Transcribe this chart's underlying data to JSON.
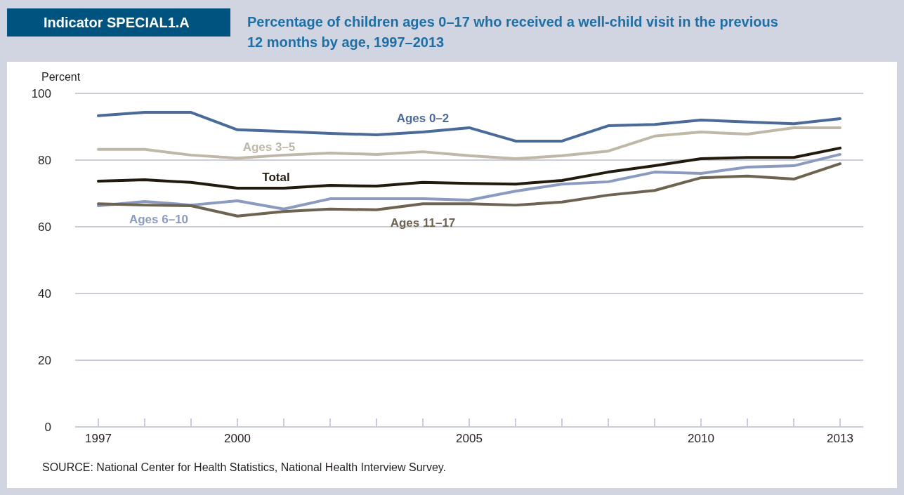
{
  "chart_data": {
    "type": "line",
    "title": "Indicator SPECIAL1.A",
    "subtitle": "Percentage of children ages 0–17 who received a well-child visit in the previous 12 months by age, 1997–2013",
    "ylabel": "Percent",
    "x": [
      1997,
      1998,
      1999,
      2000,
      2001,
      2002,
      2003,
      2004,
      2005,
      2006,
      2007,
      2008,
      2009,
      2010,
      2011,
      2012,
      2013
    ],
    "series": [
      {
        "name": "Ages 0–2",
        "color": "#4a6a9a",
        "values": [
          93.3,
          94.3,
          94.3,
          89.1,
          88.6,
          88.0,
          87.6,
          88.4,
          89.7,
          85.7,
          85.7,
          90.3,
          90.7,
          92.0,
          91.4,
          90.9,
          92.4
        ]
      },
      {
        "name": "Ages 3–5",
        "color": "#bfb8a8",
        "values": [
          83.2,
          83.2,
          81.5,
          80.6,
          81.5,
          82.1,
          81.7,
          82.5,
          81.3,
          80.4,
          81.3,
          82.7,
          87.2,
          88.4,
          87.8,
          89.7,
          89.7
        ]
      },
      {
        "name": "Total",
        "color": "#231a0e",
        "values": [
          73.7,
          74.1,
          73.3,
          71.6,
          71.6,
          72.4,
          72.2,
          73.3,
          73.0,
          72.8,
          73.9,
          76.4,
          78.3,
          80.4,
          80.8,
          80.8,
          83.6
        ]
      },
      {
        "name": "Ages 6–10",
        "color": "#8b9bc0",
        "values": [
          66.3,
          67.6,
          66.5,
          67.8,
          65.3,
          68.4,
          68.4,
          68.4,
          68.0,
          70.7,
          72.8,
          73.5,
          76.4,
          76.0,
          77.9,
          78.3,
          81.7
        ]
      },
      {
        "name": "Ages 11–17",
        "color": "#6d6350",
        "values": [
          66.9,
          66.5,
          66.3,
          63.2,
          64.6,
          65.3,
          65.1,
          66.9,
          66.9,
          66.5,
          67.4,
          69.5,
          70.9,
          74.7,
          75.2,
          74.3,
          78.9
        ]
      }
    ],
    "xlim": [
      1996.5,
      2013.5
    ],
    "xticks": [
      1997,
      {
        "value": 1998,
        "label": null
      },
      {
        "value": 1999,
        "label": null
      },
      2000,
      {
        "value": 2001,
        "label": null
      },
      {
        "value": 2002,
        "label": null
      },
      {
        "value": 2003,
        "label": null
      },
      {
        "value": 2004,
        "label": null
      },
      2005,
      {
        "value": 2006,
        "label": null
      },
      {
        "value": 2007,
        "label": null
      },
      {
        "value": 2008,
        "label": null
      },
      {
        "value": 2009,
        "label": null
      },
      2010,
      {
        "value": 2011,
        "label": null
      },
      {
        "value": 2012,
        "label": null
      },
      2013
    ],
    "ylim": [
      0,
      100
    ],
    "yticks": [
      0,
      20,
      40,
      60,
      80,
      100
    ],
    "grid": "y",
    "legend": false,
    "marker": "none",
    "line_style": "solid",
    "annotations": [
      "SOURCE: National Center for Health Statistics, National Health Interview Survey."
    ]
  }
}
